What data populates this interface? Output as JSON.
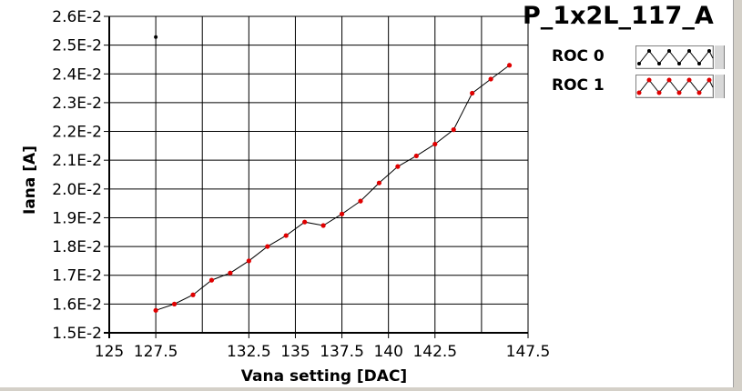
{
  "chart_data": {
    "type": "scatter",
    "title": "P_1x2L_117_A",
    "xlabel": "Vana setting [DAC]",
    "ylabel": "Iana [A]",
    "xlim": [
      125,
      147.5
    ],
    "ylim": [
      0.015,
      0.026
    ],
    "x_ticks": [
      "125",
      "127.5",
      "132.5",
      "135",
      "137.5",
      "140",
      "142.5",
      "147.5"
    ],
    "x_tick_values": [
      125,
      127.5,
      132.5,
      135,
      137.5,
      140,
      142.5,
      147.5
    ],
    "y_ticks": [
      "1.5E-2",
      "1.6E-2",
      "1.7E-2",
      "1.8E-2",
      "1.9E-2",
      "2.0E-2",
      "2.1E-2",
      "2.2E-2",
      "2.3E-2",
      "2.4E-2",
      "2.5E-2",
      "2.6E-2"
    ],
    "y_tick_values": [
      0.015,
      0.016,
      0.017,
      0.018,
      0.019,
      0.02,
      0.021,
      0.022,
      0.023,
      0.024,
      0.025,
      0.026
    ],
    "grid": true,
    "legend_position": "top-right",
    "series": [
      {
        "name": "ROC 0",
        "color": "#000000",
        "line": false,
        "x": [
          127.5
        ],
        "y": [
          0.02528
        ]
      },
      {
        "name": "ROC 1",
        "color": "#e00000",
        "line": true,
        "x": [
          127.5,
          128.5,
          129.5,
          130.5,
          131.5,
          132.5,
          133.5,
          134.5,
          135.5,
          136.5,
          137.5,
          138.5,
          139.5,
          140.5,
          141.5,
          142.5,
          143.5,
          144.5,
          145.5,
          146.5
        ],
        "y": [
          0.01578,
          0.016,
          0.01632,
          0.01683,
          0.01708,
          0.0175,
          0.018,
          0.01838,
          0.01885,
          0.01873,
          0.01913,
          0.01958,
          0.02021,
          0.02078,
          0.02115,
          0.02156,
          0.02206,
          0.02333,
          0.02382,
          0.0243
        ]
      }
    ]
  }
}
